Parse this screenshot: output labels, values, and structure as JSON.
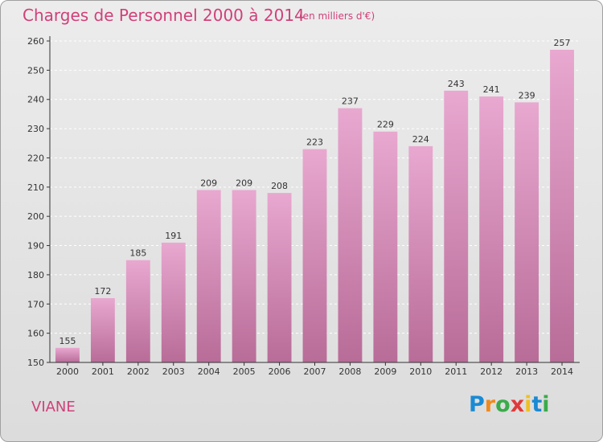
{
  "title": "Charges de Personnel 2000 à 2014",
  "unit_note": "(en milliers d'€)",
  "commune": "VIANE",
  "logo": {
    "letters": [
      "P",
      "r",
      "o",
      "x",
      "i",
      "t",
      "i"
    ],
    "colors": [
      "#1a8ad4",
      "#f08a1e",
      "#3aab4a",
      "#e03a3a",
      "#f0c020",
      "#1a8ad4",
      "#3aab4a"
    ]
  },
  "colors": {
    "bar_top": "#e8a8d0",
    "bar_bottom": "#b86c98",
    "axis": "#333333",
    "grid": "#ffffff",
    "accent": "#d0407a"
  },
  "chart_data": {
    "type": "bar",
    "categories": [
      "2000",
      "2001",
      "2002",
      "2003",
      "2004",
      "2005",
      "2006",
      "2007",
      "2008",
      "2009",
      "2010",
      "2011",
      "2012",
      "2013",
      "2014"
    ],
    "values": [
      155,
      172,
      185,
      191,
      209,
      209,
      208,
      223,
      237,
      229,
      224,
      243,
      241,
      239,
      257
    ],
    "ylim": [
      150,
      260
    ],
    "yticks": [
      150,
      160,
      170,
      180,
      190,
      200,
      210,
      220,
      230,
      240,
      250,
      260
    ],
    "grid": "horizontal dashed",
    "data_labels": true
  }
}
